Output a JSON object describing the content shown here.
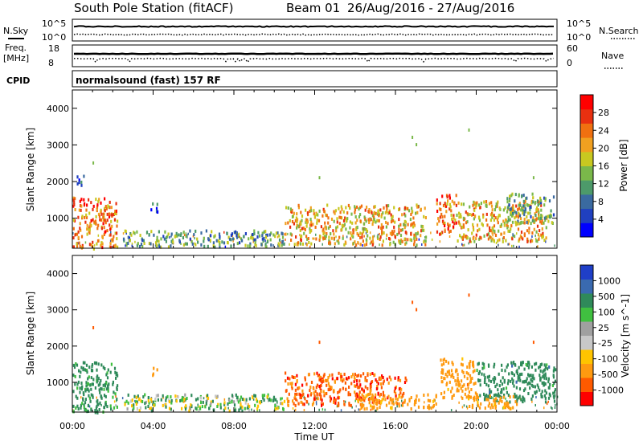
{
  "header": {
    "station": "South Pole Station (fitACF)",
    "beam": "Beam 01",
    "date_range": "26/Aug/2016 - 27/Aug/2016"
  },
  "left_labels": {
    "nsky": "N.Sky",
    "freq_line1": "Freq.",
    "freq_line2": "[MHz]",
    "cpid": "CPID"
  },
  "right_labels": {
    "nsearch": "N.Search",
    "nave": "Nave"
  },
  "noise_panel": {
    "left_ticks": [
      "10^5",
      "10^0"
    ],
    "right_ticks": [
      "10^5",
      "10^0"
    ]
  },
  "freq_panel": {
    "left_ticks": [
      "18",
      "8"
    ],
    "right_ticks": [
      "60",
      "0"
    ]
  },
  "cpid_text": "normalsound (fast) 157 RF",
  "colors": {
    "frame": "#000000",
    "power_scale": [
      "#0000ff",
      "#2040c0",
      "#3a6aa0",
      "#4d9a6a",
      "#7ab84a",
      "#c8c820",
      "#f0a020",
      "#f07010",
      "#e83010",
      "#ff0000"
    ],
    "velocity_scale": [
      "#ff0000",
      "#ff5a00",
      "#ff9a10",
      "#ffc400",
      "#c8c8c8",
      "#a0a0a0",
      "#40c040",
      "#2f8a5a",
      "#3a6ab0",
      "#1f3fc8"
    ]
  },
  "chart_data": [
    {
      "type": "heatmap",
      "panel": "power",
      "ylabel": "Slant Range [km]",
      "yticks": [
        "1000",
        "2000",
        "3000",
        "4000"
      ],
      "ylim": [
        180,
        4500
      ],
      "colorbar_label": "Power [dB]",
      "colorbar_ticks": [
        "4",
        "8",
        "12",
        "16",
        "20",
        "24",
        "28"
      ],
      "x": [
        "00:00",
        "04:00",
        "08:00",
        "12:00",
        "16:00",
        "20:00",
        "00:00"
      ],
      "xlim_hours": [
        0,
        24
      ],
      "regions": [
        {
          "t0": 0.0,
          "t1": 2.2,
          "r0": 200,
          "r1": 1600,
          "level": 26
        },
        {
          "t0": 0.2,
          "t1": 0.6,
          "r0": 1900,
          "r1": 2200,
          "level": 6
        },
        {
          "t0": 3.8,
          "t1": 4.2,
          "r0": 1200,
          "r1": 1500,
          "level": 10
        },
        {
          "t0": 2.5,
          "t1": 10.5,
          "r0": 250,
          "r1": 700,
          "level": 14
        },
        {
          "t0": 10.5,
          "t1": 17.5,
          "r0": 300,
          "r1": 1400,
          "level": 22
        },
        {
          "t0": 18.0,
          "t1": 19.0,
          "r0": 600,
          "r1": 1700,
          "level": 26
        },
        {
          "t0": 19.0,
          "t1": 23.5,
          "r0": 400,
          "r1": 1500,
          "level": 22
        },
        {
          "t0": 21.5,
          "t1": 23.8,
          "r0": 900,
          "r1": 1700,
          "level": 14
        }
      ]
    },
    {
      "type": "heatmap",
      "panel": "velocity",
      "ylabel": "Slant Range [km]",
      "yticks": [
        "1000",
        "2000",
        "3000",
        "4000"
      ],
      "ylim": [
        180,
        4500
      ],
      "colorbar_label": "Velocity [m s^-1]",
      "colorbar_ticks": [
        "1000",
        "500",
        "100",
        "25",
        "-25",
        "-100",
        "-500",
        "-1000"
      ],
      "x": [
        "00:00",
        "04:00",
        "08:00",
        "12:00",
        "16:00",
        "20:00",
        "00:00"
      ],
      "xlabel": "Time UT",
      "xlim_hours": [
        0,
        24
      ],
      "regions": [
        {
          "t0": 0.0,
          "t1": 2.2,
          "r0": 200,
          "r1": 1600,
          "level": 200
        },
        {
          "t0": 3.9,
          "t1": 4.2,
          "r0": 1200,
          "r1": 1450,
          "level": -300
        },
        {
          "t0": 2.5,
          "t1": 10.5,
          "r0": 250,
          "r1": 700,
          "level": 50
        },
        {
          "t0": 10.5,
          "t1": 16.5,
          "r0": 400,
          "r1": 1300,
          "level": -700
        },
        {
          "t0": 14.0,
          "t1": 18.0,
          "r0": 300,
          "r1": 700,
          "level": -200
        },
        {
          "t0": 18.2,
          "t1": 20.0,
          "r0": 600,
          "r1": 1700,
          "level": -300
        },
        {
          "t0": 20.0,
          "t1": 23.9,
          "r0": 500,
          "r1": 1600,
          "level": 300
        },
        {
          "t0": 19.5,
          "t1": 22.0,
          "r0": 300,
          "r1": 700,
          "level": -250
        }
      ]
    }
  ]
}
